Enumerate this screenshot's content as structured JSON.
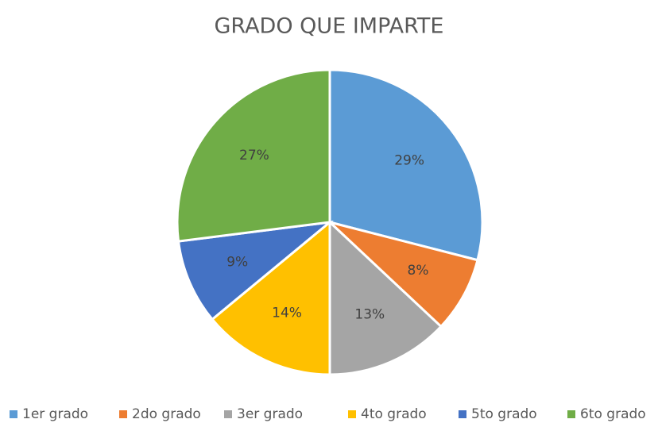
{
  "chart_data": {
    "type": "pie",
    "title": "GRADO QUE IMPARTE",
    "categories": [
      "1er grado",
      "2do grado",
      "3er grado",
      "4to grado",
      "5to grado",
      "6to grado"
    ],
    "values": [
      29,
      8,
      13,
      14,
      9,
      27
    ],
    "value_labels": [
      "29%",
      "8%",
      "13%",
      "14%",
      "9%",
      "27%"
    ],
    "colors": [
      "#5b9bd5",
      "#ed7d31",
      "#a5a5a5",
      "#ffc000",
      "#4472c4",
      "#70ad47"
    ],
    "legend": "bottom"
  }
}
